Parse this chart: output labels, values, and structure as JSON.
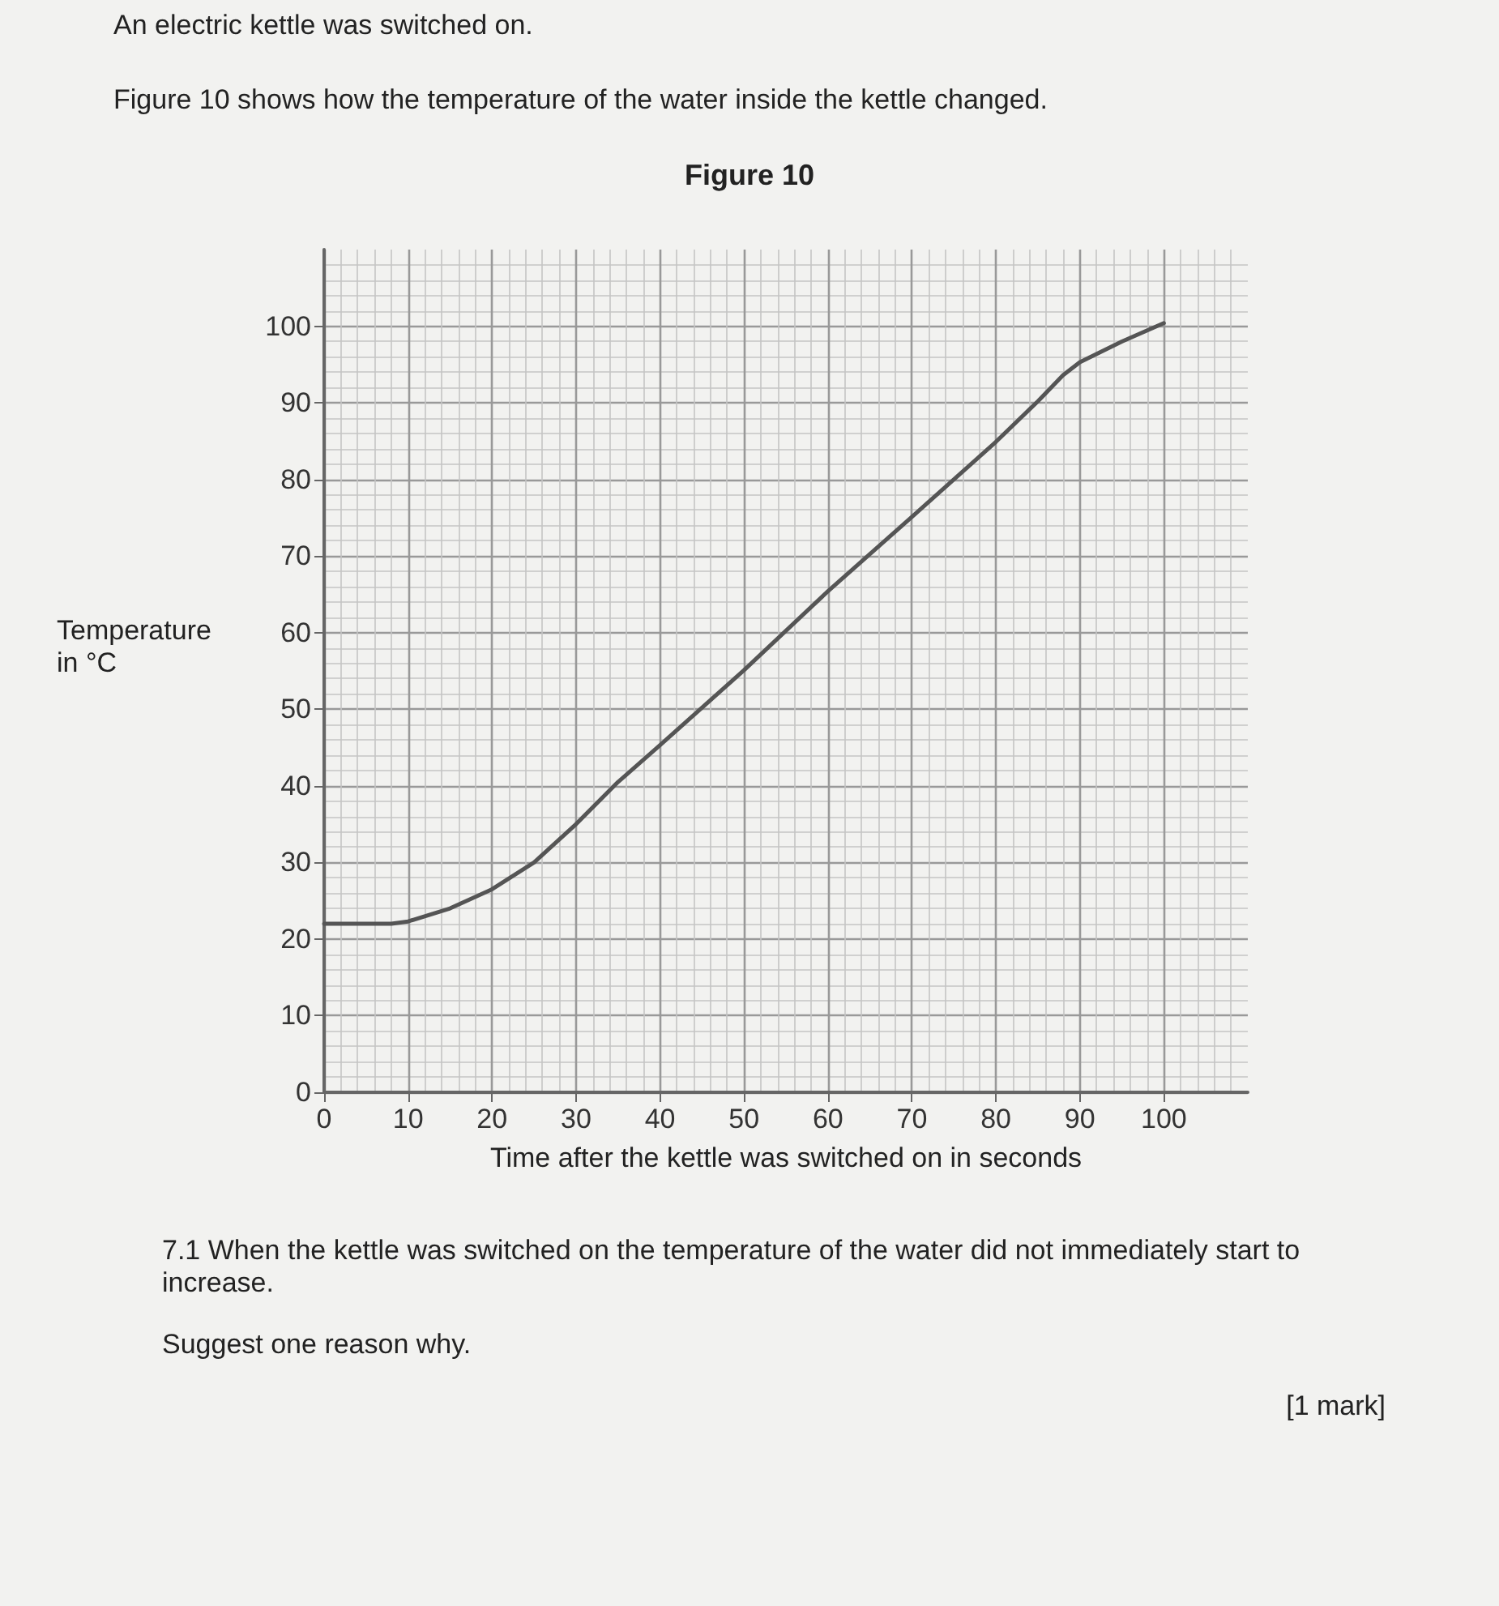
{
  "chart_data": {
    "type": "line",
    "title": "Figure 10",
    "xlabel": "Time after the kettle was switched on in seconds",
    "ylabel": "Temperature in °C",
    "annotations": [
      "An electric kettle was switched on.",
      "Figure 10 shows how the temperature of the water inside the kettle changed.",
      "7.1 When the kettle was switched on the temperature of the water did not immediately start to increase.",
      "Suggest one reason why.",
      "[1 mark]"
    ],
    "x": [
      0,
      8,
      10,
      15,
      20,
      25,
      30,
      35,
      40,
      50,
      60,
      70,
      80,
      85,
      88,
      90,
      95,
      100
    ],
    "series": [
      {
        "color": "#555555",
        "values": [
          22,
          22,
          22.3,
          24,
          26.5,
          30,
          35,
          40.5,
          45.3,
          55.1,
          65.4,
          75.1,
          84.9,
          90.2,
          93.6,
          95.3,
          98,
          100.4
        ]
      }
    ],
    "xlim": [
      0,
      110
    ],
    "ylim": [
      0,
      110
    ],
    "xticks": [
      0,
      10,
      20,
      30,
      40,
      50,
      60,
      70,
      80,
      90,
      100
    ],
    "yticks": [
      0,
      10,
      20,
      30,
      40,
      50,
      60,
      70,
      80,
      90,
      100
    ],
    "grid": true,
    "marker": "none",
    "line_style": "solid"
  }
}
